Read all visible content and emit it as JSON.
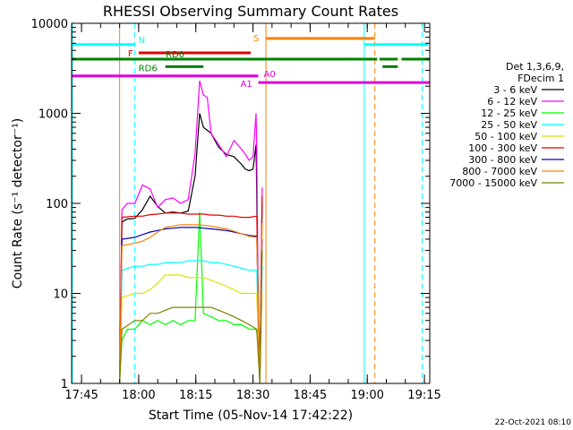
{
  "chart_data": {
    "type": "line",
    "title": "RHESSI Observing Summary Count Rates",
    "xlabel": "Start Time (05-Nov-14 17:42:22)",
    "ylabel": "Count Rate (s⁻¹ detector⁻¹)",
    "xlim_minutes_after_17_42_22": [
      0,
      94
    ],
    "x_ticks": [
      {
        "label": "17:45",
        "t": 2.6
      },
      {
        "label": "18:00",
        "t": 17.6
      },
      {
        "label": "18:15",
        "t": 32.6
      },
      {
        "label": "18:30",
        "t": 47.6
      },
      {
        "label": "18:45",
        "t": 62.6
      },
      {
        "label": "19:00",
        "t": 77.6
      },
      {
        "label": "19:15",
        "t": 92.6
      }
    ],
    "ylim": [
      1,
      10000
    ],
    "yscale": "log",
    "y_ticks": [
      {
        "label": "1",
        "v": 1
      },
      {
        "label": "10",
        "v": 10
      },
      {
        "label": "100",
        "v": 100
      },
      {
        "label": "1000",
        "v": 1000
      },
      {
        "label": "10000",
        "v": 10000
      }
    ],
    "legend_header": [
      "Det 1,3,6,9,",
      "FDecim 1"
    ],
    "series": [
      {
        "name": "3 - 6 keV",
        "color": "#000000",
        "t": [
          12.6,
          13.2,
          14.6,
          16.6,
          18.6,
          20.6,
          22.6,
          24.6,
          26.6,
          28.6,
          30.6,
          32.4,
          33.6,
          34.6,
          36.6,
          38.6,
          40.6,
          42.6,
          44.6,
          45.6,
          46.6,
          47.6,
          48.4,
          48.6,
          49.0,
          49.4,
          50.0
        ],
        "y": [
          1,
          62,
          67,
          68,
          85,
          120,
          92,
          78,
          80,
          78,
          82,
          200,
          1000,
          700,
          600,
          420,
          350,
          330,
          270,
          240,
          230,
          240,
          450,
          120,
          5,
          1,
          100
        ]
      },
      {
        "name": "6 - 12 keV",
        "color": "#ff00ff",
        "t": [
          12.6,
          13.2,
          14.6,
          16.6,
          18.6,
          20.6,
          22.6,
          24.6,
          26.6,
          28.6,
          30.6,
          32.4,
          33.6,
          34.6,
          35.6,
          36.6,
          38.6,
          40.6,
          42.6,
          44.6,
          45.6,
          46.6,
          47.6,
          48.4,
          48.6,
          49.0,
          49.4,
          50.0
        ],
        "y": [
          1,
          85,
          100,
          100,
          160,
          145,
          90,
          110,
          115,
          100,
          110,
          360,
          2300,
          1600,
          1500,
          600,
          450,
          330,
          500,
          400,
          350,
          300,
          330,
          1000,
          400,
          5,
          1,
          150
        ]
      },
      {
        "name": "12 - 25 keV",
        "color": "#00ff00",
        "t": [
          12.6,
          13.2,
          14.6,
          16.6,
          18.6,
          20.6,
          22.6,
          24.6,
          26.6,
          28.6,
          30.6,
          32.4,
          33.6,
          34.6,
          36.6,
          38.6,
          40.6,
          42.6,
          44.6,
          46.6,
          47.6,
          48.4,
          49.0,
          49.4,
          50.0
        ],
        "y": [
          1,
          3,
          4,
          4,
          5,
          4.5,
          5,
          4.5,
          5,
          4.5,
          5,
          5,
          80,
          6,
          5.5,
          5,
          5,
          4.5,
          4.5,
          4,
          4,
          4,
          3,
          1,
          30
        ]
      },
      {
        "name": "25 - 50 keV",
        "color": "#00ffff",
        "t": [
          12.6,
          13.2,
          14.6,
          16.6,
          18.6,
          20.6,
          22.6,
          24.6,
          26.6,
          28.6,
          30.6,
          32.6,
          34.6,
          36.6,
          38.6,
          40.6,
          42.6,
          44.6,
          46.6,
          48.6,
          49.4,
          50.0
        ],
        "y": [
          1,
          18,
          19,
          20,
          20,
          21,
          21,
          22,
          22,
          22,
          23,
          23,
          23,
          22,
          22,
          21,
          20,
          19,
          18,
          18,
          1,
          20
        ]
      },
      {
        "name": "50 - 100 keV",
        "color": "#e0e000",
        "t": [
          12.6,
          13.2,
          16.6,
          18.6,
          20.6,
          22.6,
          24.6,
          26.6,
          28.6,
          30.6,
          32.6,
          34.6,
          36.6,
          38.6,
          40.6,
          42.6,
          44.6,
          46.6,
          48.6,
          49.4,
          50.0
        ],
        "y": [
          1,
          9,
          10,
          10,
          11,
          13,
          16,
          16,
          16,
          15,
          15,
          15,
          14,
          13,
          12,
          11,
          10,
          10,
          10,
          1,
          10
        ]
      },
      {
        "name": "100 - 300 keV",
        "color": "#e00000",
        "t": [
          12.6,
          13.2,
          16.6,
          18.6,
          20.6,
          22.6,
          24.6,
          26.6,
          28.6,
          30.6,
          32.6,
          34.6,
          36.6,
          38.6,
          40.6,
          42.6,
          44.6,
          46.6,
          48.6,
          49.4,
          50.0
        ],
        "y": [
          1,
          70,
          72,
          72,
          75,
          76,
          78,
          78,
          78,
          76,
          76,
          76,
          74,
          74,
          72,
          72,
          70,
          70,
          72,
          1,
          120
        ]
      },
      {
        "name": "300 - 800 keV",
        "color": "#0000c0",
        "t": [
          12.6,
          13.2,
          16.6,
          18.6,
          20.6,
          22.6,
          24.6,
          26.6,
          28.6,
          30.6,
          32.6,
          34.6,
          36.6,
          38.6,
          40.6,
          42.6,
          44.6,
          46.6,
          48.6,
          49.4,
          50.0
        ],
        "y": [
          1,
          40,
          42,
          45,
          48,
          50,
          52,
          53,
          54,
          54,
          54,
          53,
          52,
          51,
          50,
          48,
          46,
          44,
          43,
          1,
          40
        ]
      },
      {
        "name": "800 - 7000 keV",
        "color": "#ff8000",
        "t": [
          12.6,
          13.2,
          16.6,
          18.6,
          20.6,
          22.6,
          24.6,
          26.6,
          28.6,
          30.6,
          32.6,
          34.6,
          36.6,
          38.6,
          40.6,
          42.6,
          44.6,
          46.6,
          48.6,
          49.4,
          50.0
        ],
        "y": [
          1,
          34,
          36,
          38,
          42,
          48,
          54,
          56,
          58,
          58,
          58,
          57,
          56,
          54,
          52,
          49,
          46,
          43,
          42,
          1,
          60
        ]
      },
      {
        "name": "7000 - 15000 keV",
        "color": "#808000",
        "t": [
          12.6,
          13.2,
          16.6,
          18.6,
          20.6,
          22.6,
          24.6,
          26.6,
          28.6,
          30.6,
          32.6,
          34.6,
          36.6,
          38.6,
          40.6,
          42.6,
          44.6,
          46.6,
          48.6,
          49.4,
          50.0
        ],
        "y": [
          1,
          4,
          5,
          5,
          6,
          6,
          6.5,
          7,
          7,
          7,
          7,
          7,
          7,
          6.5,
          6,
          5.5,
          5,
          4.5,
          4,
          1,
          30
        ]
      }
    ],
    "flag_bars": [
      {
        "label": "N",
        "color": "#00ffff",
        "y": 5800,
        "segments": [
          [
            0,
            16.6
          ],
          [
            76.8,
            93.6
          ]
        ]
      },
      {
        "label": "F",
        "color": "#e00000",
        "y": 4700,
        "segments": [
          [
            17.6,
            47.0
          ]
        ]
      },
      {
        "label": "S",
        "color": "#ff8000",
        "y": 6800,
        "segments": [
          [
            51.0,
            79.6
          ]
        ]
      },
      {
        "label": "RD0",
        "color": "#008000",
        "y": 4000,
        "segments": [
          [
            0,
            41.6
          ],
          [
            41.6,
            80.2
          ],
          [
            80.8,
            85.6
          ],
          [
            86.6,
            94
          ]
        ]
      },
      {
        "label": "RD6",
        "color": "#008000",
        "y": 3300,
        "segments": [
          [
            24.6,
            34.6
          ],
          [
            81.6,
            85.6
          ]
        ]
      },
      {
        "label": "A1",
        "color": "#e000e0",
        "y": 2600,
        "segments": [
          [
            0,
            49.0
          ]
        ]
      },
      {
        "label": "A0",
        "color": "#e000e0",
        "y": 2200,
        "segments": [
          [
            49.0,
            94
          ]
        ]
      }
    ],
    "vlines": [
      {
        "t": 0.2,
        "color": "#00ffff",
        "style": "solid"
      },
      {
        "t": 16.6,
        "color": "#00ffff",
        "style": "dashed"
      },
      {
        "t": 76.8,
        "color": "#00ffff",
        "style": "solid"
      },
      {
        "t": 92.0,
        "color": "#00ffff",
        "style": "dashed"
      },
      {
        "t": 12.6,
        "color": "#ff8000",
        "style": "solid"
      },
      {
        "t": 51.0,
        "color": "#ff8000",
        "style": "solid"
      },
      {
        "t": 79.6,
        "color": "#ff8000",
        "style": "dashed"
      }
    ],
    "timestamp": "22-Oct-2021 08:10"
  }
}
